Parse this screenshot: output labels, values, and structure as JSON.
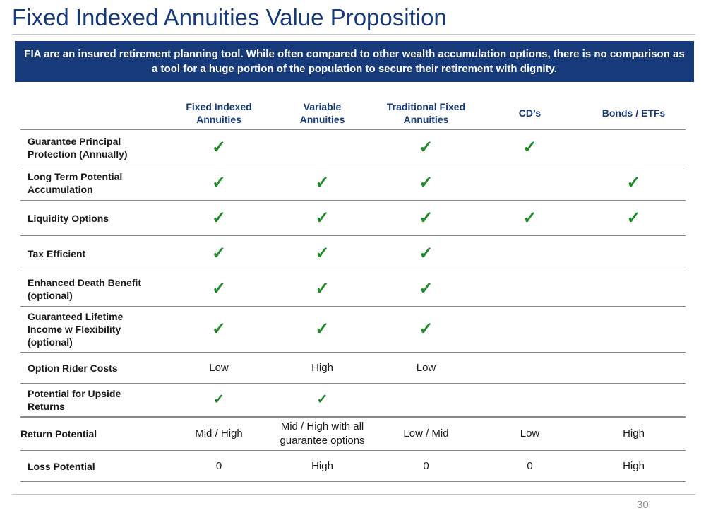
{
  "slide": {
    "title": "Fixed Indexed Annuities Value Proposition",
    "banner": "FIA are an insured retirement planning tool.  While often compared to other wealth accumulation options, there is no comparison as a tool for a huge portion of the population to secure their retirement with dignity.",
    "page_number": "30"
  },
  "table": {
    "columns": [
      {
        "line1": "Fixed Indexed",
        "line2": "Annuities"
      },
      {
        "line1": "Variable",
        "line2": "Annuities"
      },
      {
        "line1": "Traditional Fixed",
        "line2": "Annuities"
      },
      {
        "line1": "CD’s",
        "line2": ""
      },
      {
        "line1": "Bonds / ETFs",
        "line2": ""
      }
    ],
    "rows": [
      {
        "label": [
          "Guarantee Principal",
          "Protection (Annually)"
        ],
        "cells": [
          "✓",
          "",
          "✓",
          "✓",
          ""
        ]
      },
      {
        "label": [
          "Long Term Potential",
          "Accumulation"
        ],
        "cells": [
          "✓",
          "✓",
          "✓",
          "",
          "✓"
        ]
      },
      {
        "label": [
          "Liquidity Options"
        ],
        "cells": [
          "✓",
          "✓",
          "✓",
          "✓",
          "✓"
        ]
      },
      {
        "label": [
          "Tax Efficient"
        ],
        "cells": [
          "✓",
          "✓",
          "✓",
          "",
          ""
        ]
      },
      {
        "label": [
          "Enhanced Death Benefit",
          "(optional)"
        ],
        "cells": [
          "✓",
          "✓",
          "✓",
          "",
          ""
        ]
      },
      {
        "label": [
          "Guaranteed Lifetime",
          "Income w Flexibility",
          "(optional)"
        ],
        "cells": [
          "✓",
          "✓",
          "✓",
          "",
          ""
        ]
      },
      {
        "label": [
          "Option Rider Costs"
        ],
        "cells": [
          "Low",
          "High",
          "Low",
          "",
          ""
        ]
      },
      {
        "label": [
          "Potential for Upside",
          "Returns"
        ],
        "cells": [
          "✓",
          "✓",
          "",
          "",
          ""
        ]
      },
      {
        "label": [
          "Return Potential"
        ],
        "cells": [
          "Mid / High",
          "Mid / High with all guarantee options",
          "Low / Mid",
          "Low",
          "High"
        ]
      },
      {
        "label": [
          "Loss Potential"
        ],
        "cells": [
          "0",
          "High",
          "0",
          "0",
          "High"
        ]
      }
    ]
  },
  "colors": {
    "brand_blue": "#173a7a",
    "check_green": "#1f8a2a"
  }
}
